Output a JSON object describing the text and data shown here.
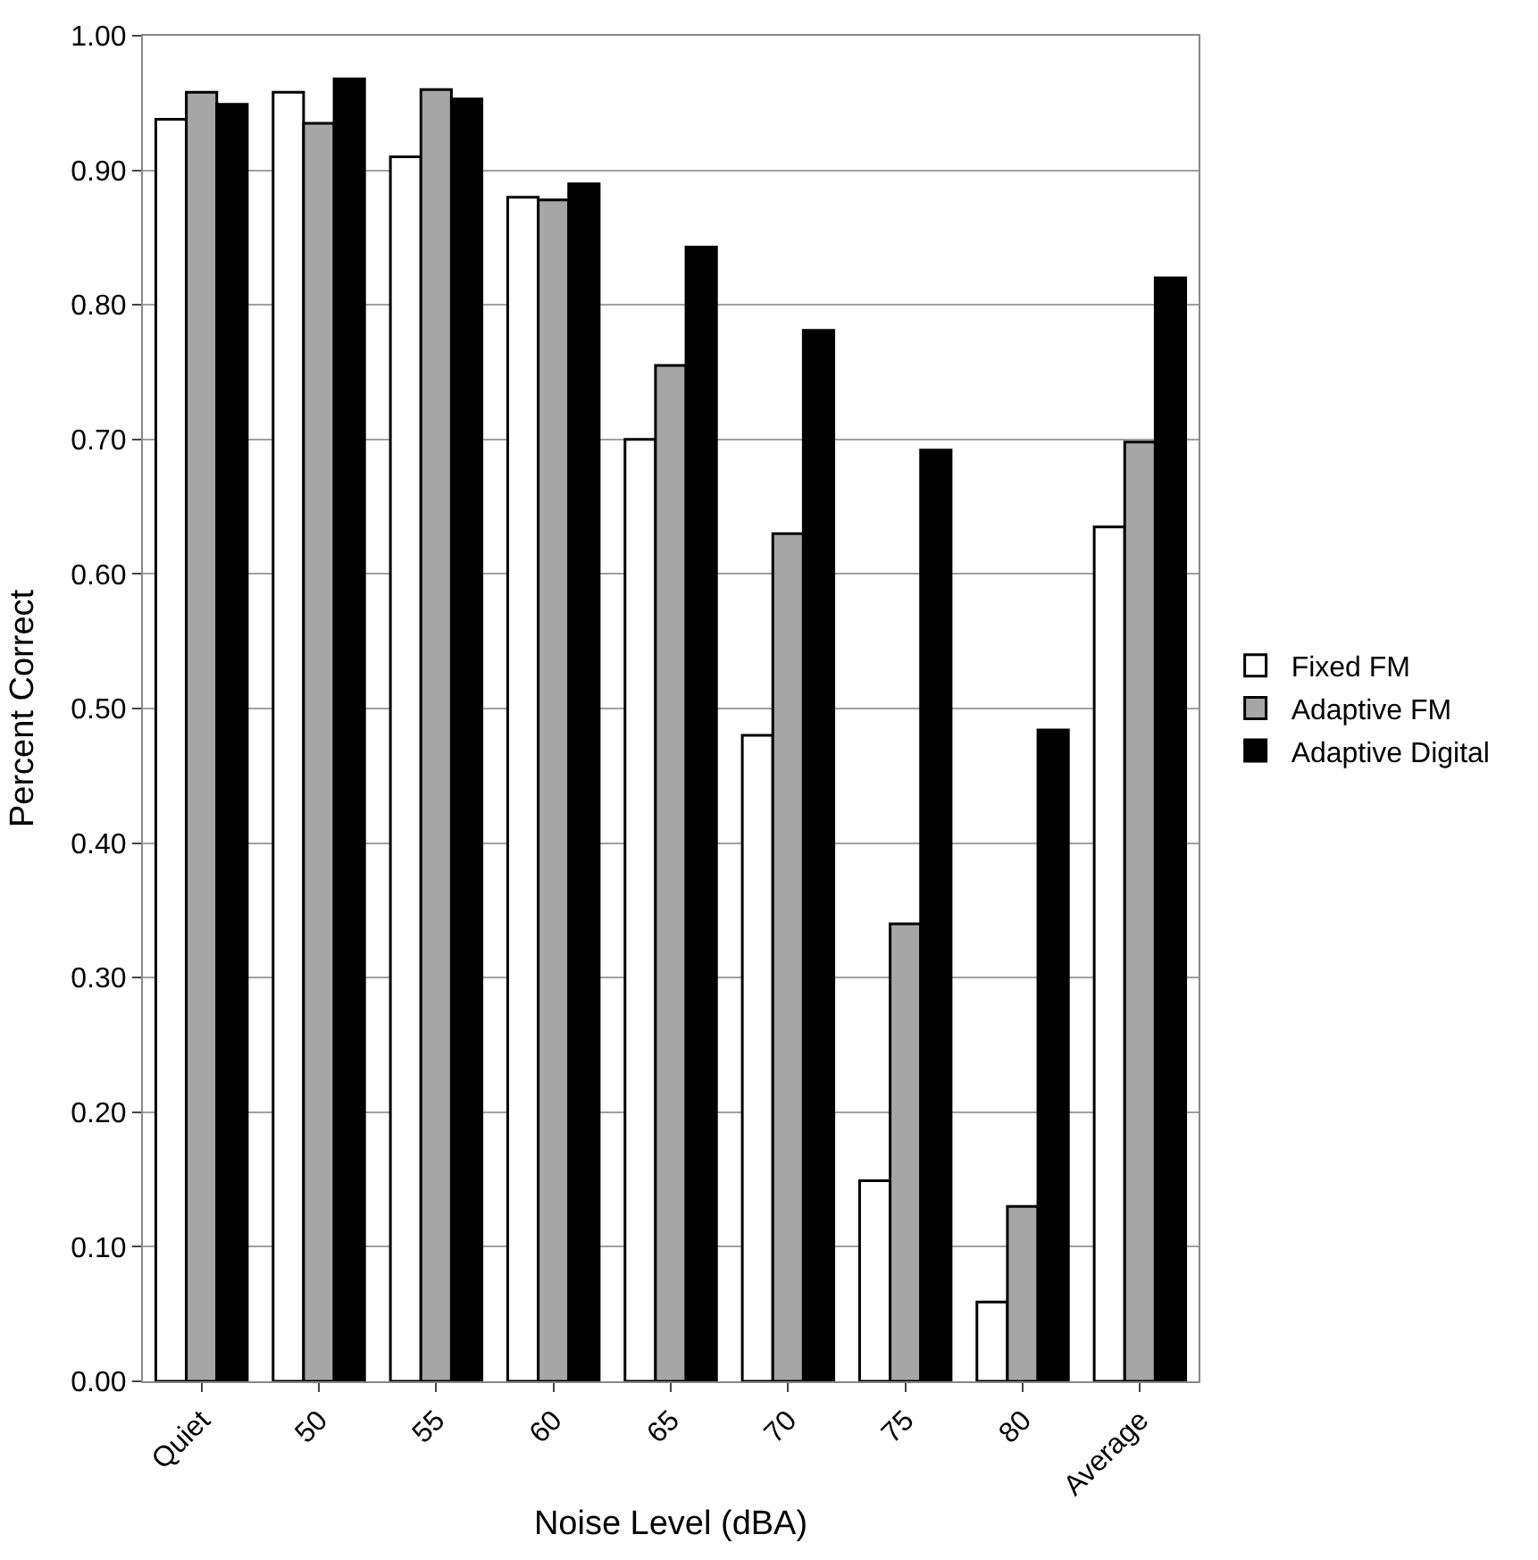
{
  "chart_data": {
    "type": "bar",
    "xlabel": "Noise Level (dBA)",
    "ylabel": "Percent Correct",
    "categories": [
      "Quiet",
      "50",
      "55",
      "60",
      "65",
      "70",
      "75",
      "80",
      "Average"
    ],
    "series": [
      {
        "name": "Fixed FM",
        "color": "#ffffff",
        "values": [
          0.938,
          0.958,
          0.91,
          0.88,
          0.7,
          0.48,
          0.149,
          0.059,
          0.635
        ]
      },
      {
        "name": "Adaptive FM",
        "color": "#a6a6a6",
        "values": [
          0.958,
          0.935,
          0.96,
          0.878,
          0.755,
          0.63,
          0.34,
          0.13,
          0.698
        ]
      },
      {
        "name": "Adaptive Digital",
        "color": "#000000",
        "values": [
          0.949,
          0.968,
          0.953,
          0.89,
          0.843,
          0.781,
          0.692,
          0.484,
          0.82
        ]
      }
    ],
    "ylim": [
      0,
      1.0
    ],
    "yticks": [
      {
        "value": 0,
        "label": "0.00"
      },
      {
        "value": 0.1,
        "label": "0.10"
      },
      {
        "value": 0.2,
        "label": "0.20"
      },
      {
        "value": 0.3,
        "label": "0.30"
      },
      {
        "value": 0.4,
        "label": "0.40"
      },
      {
        "value": 0.5,
        "label": "0.50"
      },
      {
        "value": 0.6,
        "label": "0.60"
      },
      {
        "value": 0.7,
        "label": "0.70"
      },
      {
        "value": 0.8,
        "label": "0.80"
      },
      {
        "value": 0.9,
        "label": "0.90"
      },
      {
        "value": 1.0,
        "label": "1.00"
      }
    ],
    "grid": "y",
    "legend": "right"
  }
}
